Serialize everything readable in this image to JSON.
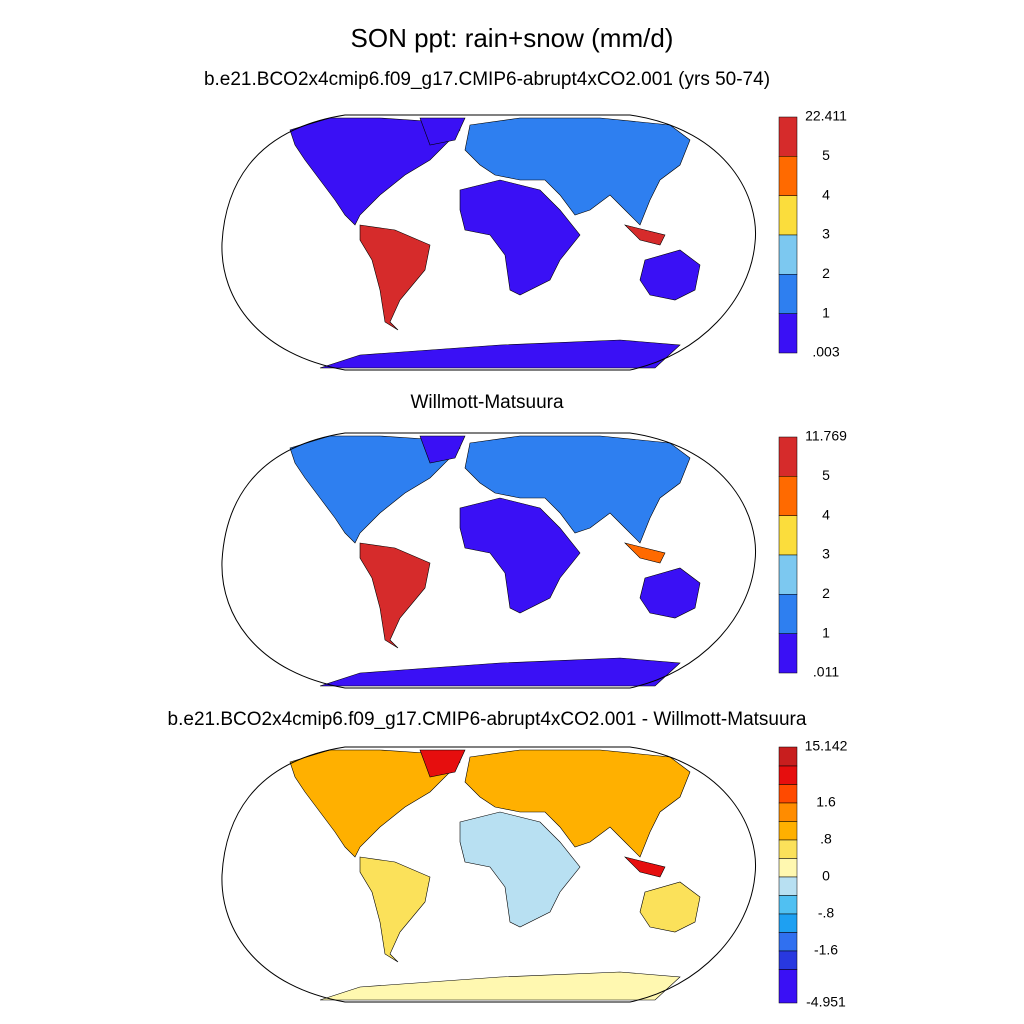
{
  "title": "SON ppt: rain+snow (mm/d)",
  "panels": [
    {
      "title": "b.e21.BCO2x4cmip6.f09_g17.CMIP6-abrupt4xCO2.001 (yrs 50-74)",
      "colorbar": {
        "labels": [
          "22.411",
          "5",
          "4",
          "3",
          "2",
          "1",
          ".003"
        ],
        "colors": [
          "#d62b2b",
          "#ff6a00",
          "#fbdd3c",
          "#7cc8f0",
          "#2e7ff0",
          "#3a10f5"
        ]
      }
    },
    {
      "title": "Willmott-Matsuura",
      "colorbar": {
        "labels": [
          "11.769",
          "5",
          "4",
          "3",
          "2",
          "1",
          ".011"
        ],
        "colors": [
          "#d62b2b",
          "#ff6a00",
          "#fbdd3c",
          "#7cc8f0",
          "#2e7ff0",
          "#3a10f5"
        ]
      }
    },
    {
      "title": "b.e21.BCO2x4cmip6.f09_g17.CMIP6-abrupt4xCO2.001 - Willmott-Matsuura",
      "colorbar": {
        "labels": [
          "15.142",
          "1.6",
          ".8",
          "0",
          "-.8",
          "-1.6",
          "-4.951"
        ],
        "colors": [
          "#c81e1e",
          "#e60e0e",
          "#ff4a00",
          "#ff8c00",
          "#ffb000",
          "#fbe15a",
          "#fff8b0",
          "#b8e0f2",
          "#50c0f2",
          "#1ea0f2",
          "#3070f0",
          "#2838e0",
          "#3a10f5"
        ]
      }
    }
  ]
}
